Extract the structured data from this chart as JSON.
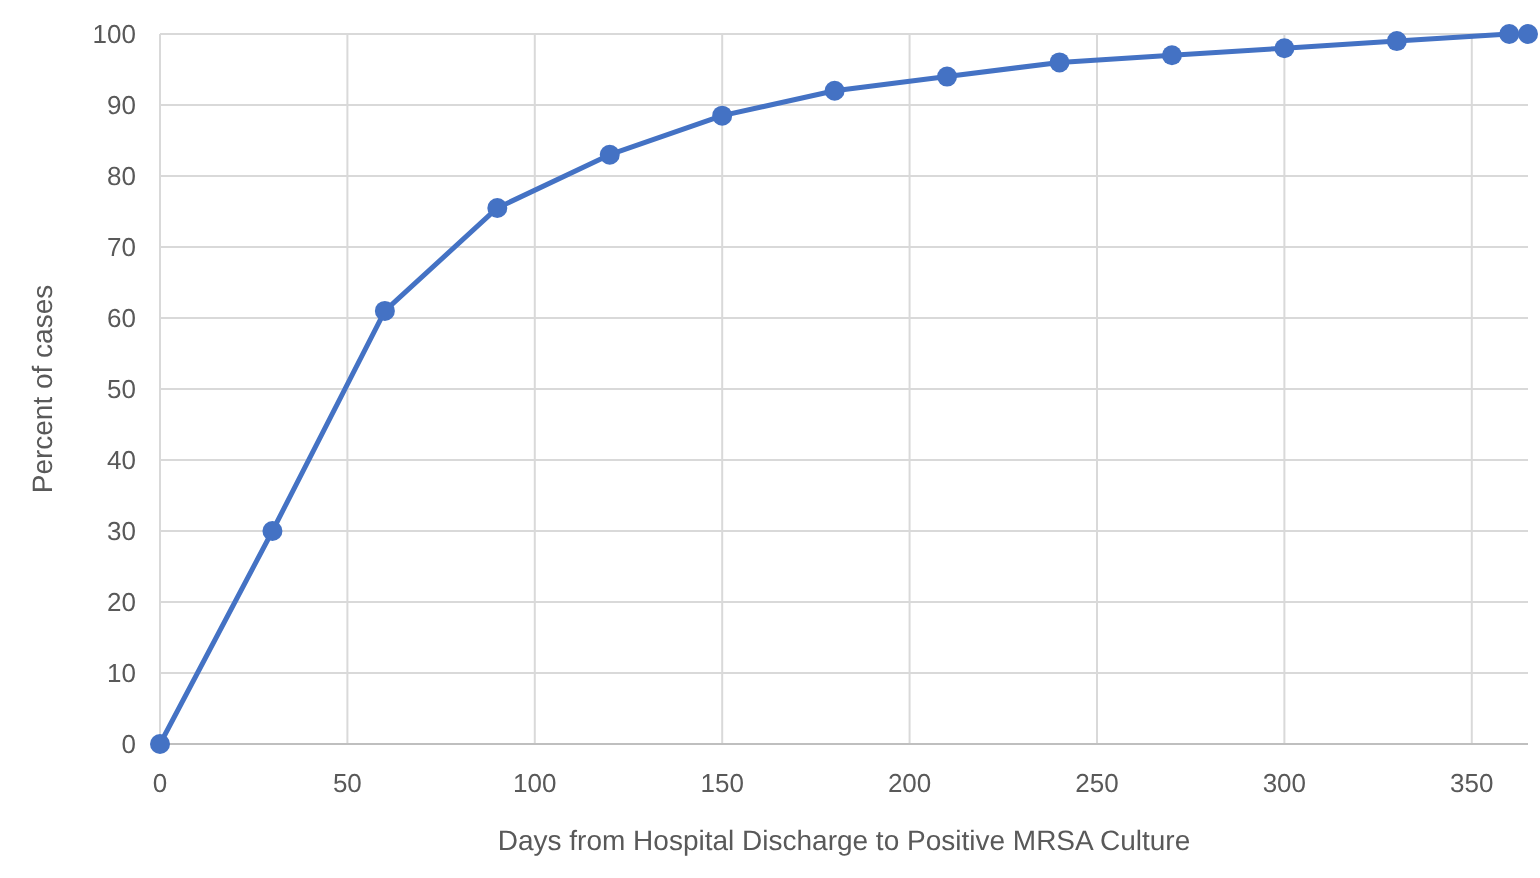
{
  "chart_data": {
    "type": "line",
    "xlabel": "Days from Hospital Discharge to Positive MRSA Culture",
    "ylabel": "Percent of cases",
    "x": [
      0,
      30,
      60,
      90,
      120,
      150,
      180,
      210,
      240,
      270,
      300,
      330,
      360,
      365
    ],
    "series": [
      {
        "color": "#4472c4",
        "values": [
          0,
          30,
          61,
          75.5,
          83,
          88.5,
          92,
          94,
          96,
          97,
          98,
          99,
          100,
          100
        ]
      }
    ],
    "xlim": [
      0,
      365
    ],
    "xticks": [
      0,
      50,
      100,
      150,
      200,
      250,
      300,
      350
    ],
    "ylim": [
      0,
      100
    ],
    "yticks": [
      0,
      10,
      20,
      30,
      40,
      50,
      60,
      70,
      80,
      90,
      100
    ],
    "grid": true,
    "marker": "circle",
    "line_style": "solid"
  }
}
